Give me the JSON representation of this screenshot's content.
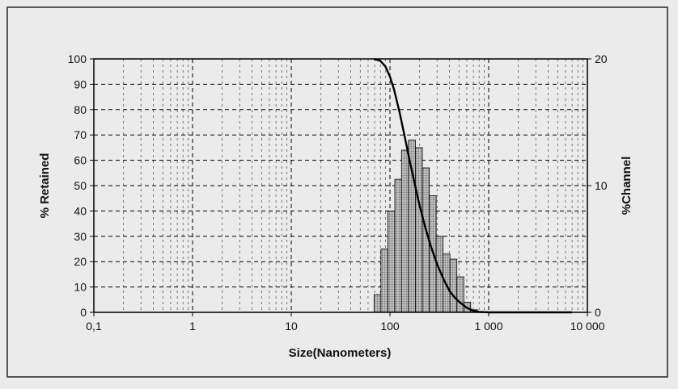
{
  "chart_data": {
    "type": "bar",
    "xlabel": "Size(Nanometers)",
    "ylabel": "% Retained",
    "y2label": "%Channel",
    "x_scale": "log",
    "xlim": [
      0.1,
      10000
    ],
    "ylim": [
      0,
      100
    ],
    "y2lim": [
      0,
      20
    ],
    "grid": true,
    "x_ticks": [
      {
        "value": 0.1,
        "label": "0,1"
      },
      {
        "value": 1,
        "label": "1"
      },
      {
        "value": 10,
        "label": "10"
      },
      {
        "value": 100,
        "label": "100"
      },
      {
        "value": 1000,
        "label": "1 000"
      },
      {
        "value": 10000,
        "label": "10 000"
      }
    ],
    "y_ticks": [
      "0",
      "10",
      "20",
      "30",
      "40",
      "50",
      "60",
      "70",
      "80",
      "90",
      "100"
    ],
    "y2_ticks": [
      {
        "value": 0,
        "label": "0"
      },
      {
        "value": 10,
        "label": "10"
      },
      {
        "value": 20,
        "label": "20"
      }
    ],
    "series": [
      {
        "kind": "bar",
        "axis": "y2",
        "bin_edges": [
          69,
          81,
          95,
          112,
          131,
          154,
          181,
          213,
          250,
          294,
          345,
          405,
          476,
          559,
          657,
          772
        ],
        "values": [
          1.4,
          5.0,
          8.0,
          10.5,
          12.8,
          13.6,
          13.0,
          11.4,
          9.2,
          6.0,
          4.6,
          4.2,
          2.8,
          0.8,
          0.2
        ]
      },
      {
        "kind": "line",
        "axis": "y",
        "x": [
          69,
          80,
          90,
          100,
          110,
          125,
          140,
          160,
          180,
          200,
          230,
          260,
          300,
          350,
          400,
          450,
          500,
          600,
          700,
          800,
          1000,
          2000,
          5000,
          7000
        ],
        "y": [
          100,
          99.2,
          97,
          93,
          88,
          79,
          70,
          59,
          50,
          42,
          33,
          26,
          19,
          13,
          8.5,
          6,
          4.2,
          1.8,
          0.6,
          0.2,
          0,
          0,
          0,
          0
        ]
      }
    ]
  }
}
